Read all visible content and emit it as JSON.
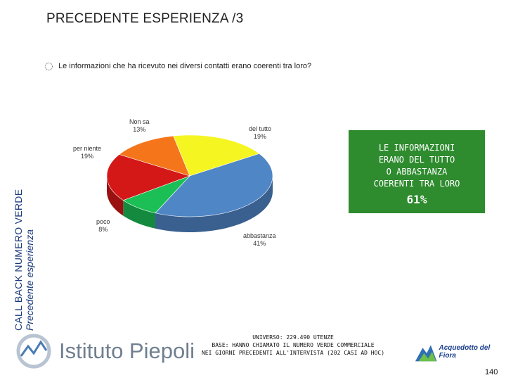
{
  "header": {
    "title": "PRECEDENTE ESPERIENZA /3"
  },
  "question": "Le informazioni che ha ricevuto nei diversi contatti erano coerenti tra loro?",
  "sidebar": {
    "line1": "CALL BACK NUMERO VERDE",
    "line2": "Precedente esperienza"
  },
  "callout": {
    "lines": [
      "LE INFORMAZIONI",
      "ERANO DEL TUTTO",
      "O ABBASTANZA",
      "COERENTI TRA LORO"
    ],
    "percent": "61%"
  },
  "chart_data": {
    "type": "pie",
    "slices": [
      {
        "label": "del tutto",
        "value": 19,
        "display": "19%",
        "color": "#f5f522"
      },
      {
        "label": "abbastanza",
        "value": 41,
        "display": "41%",
        "color": "#4f86c6"
      },
      {
        "label": "poco",
        "value": 8,
        "display": "8%",
        "color": "#1bbf55"
      },
      {
        "label": "per niente",
        "value": 19,
        "display": "19%",
        "color": "#d41818"
      },
      {
        "label": "Non sa",
        "value": 13,
        "display": "13%",
        "color": "#f5761a"
      }
    ]
  },
  "footer": {
    "lines": [
      "UNIVERSO: 229.490 UTENZE",
      "BASE: HANNO CHIAMATO IL NUMERO VERDE COMMERCIALE",
      "NEI GIORNI PRECEDENTI ALL'INTERVISTA (202 CASI AD HOC)"
    ],
    "logo_left": "Istituto Piepoli",
    "logo_right": "Acquedotto del Fiora",
    "page_number": "140"
  },
  "colors": {
    "callout_bg": "#2e8b2e",
    "side_text": "#1a3a78"
  }
}
